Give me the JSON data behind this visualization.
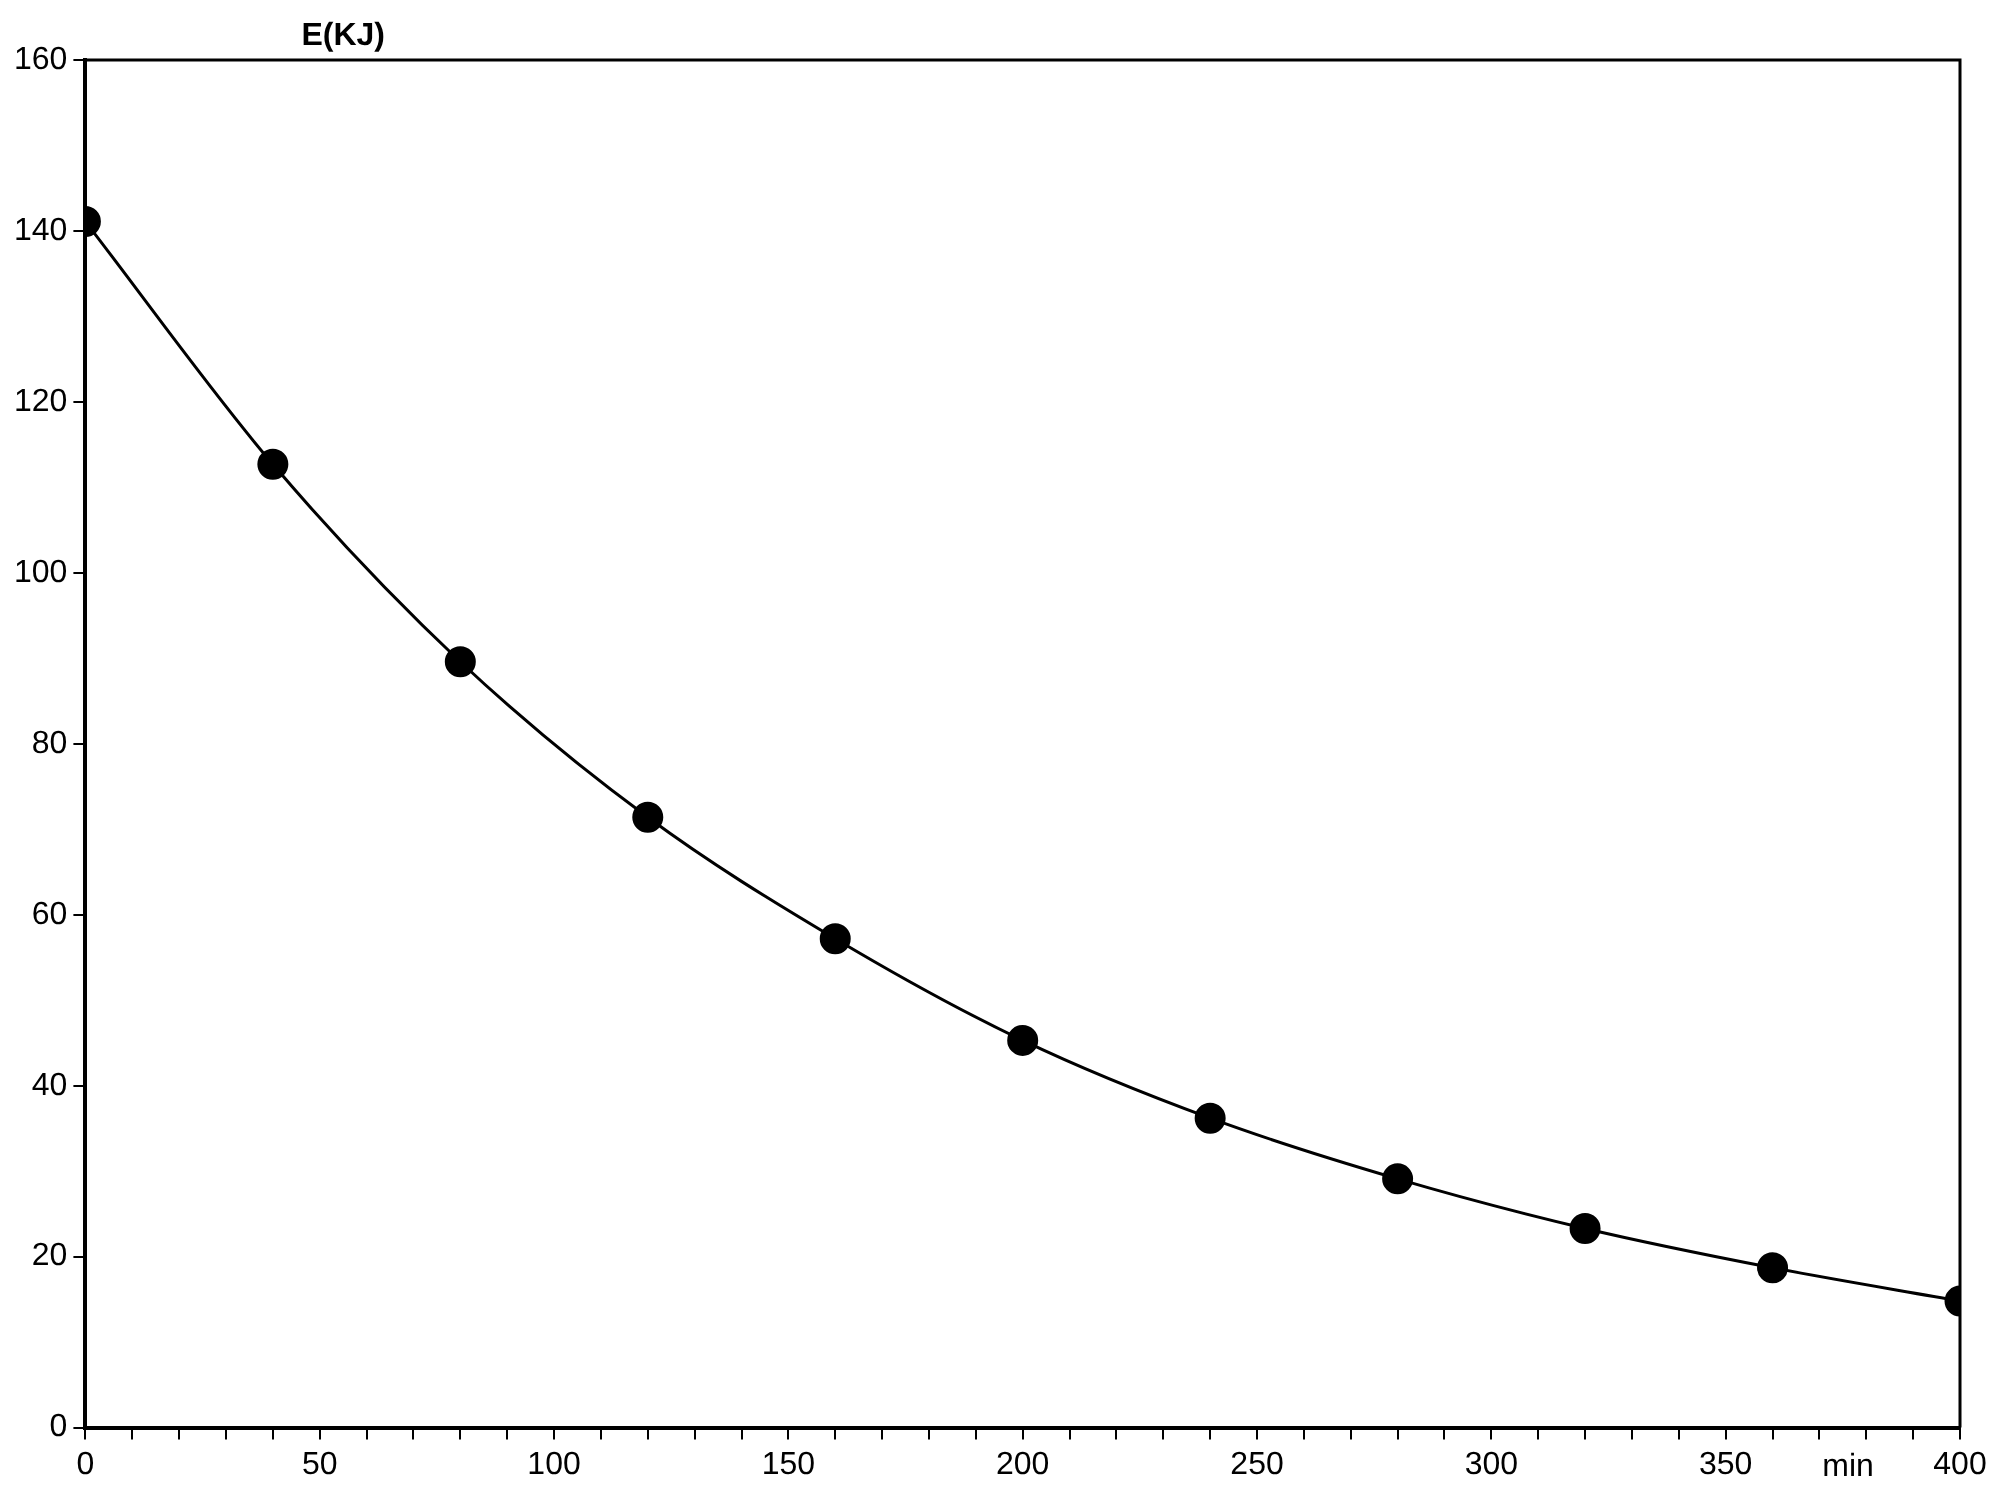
{
  "chart_data": {
    "type": "line",
    "xlabel": "min",
    "ylabel": "E(KJ)",
    "x": [
      0,
      40,
      80,
      120,
      160,
      200,
      240,
      280,
      320,
      360,
      400
    ],
    "series": [
      {
        "color": "#000000",
        "values": [
          141.1,
          112.7,
          89.6,
          71.4,
          57.2,
          45.3,
          36.2,
          29.1,
          23.3,
          18.7,
          14.8
        ]
      }
    ],
    "xlim": [
      0,
      400
    ],
    "xticks": [
      0,
      {
        "value": 10,
        "label": null
      },
      {
        "value": 20,
        "label": null
      },
      {
        "value": 30,
        "label": null
      },
      {
        "value": 40,
        "label": null
      },
      50,
      {
        "value": 60,
        "label": null
      },
      {
        "value": 70,
        "label": null
      },
      {
        "value": 80,
        "label": null
      },
      {
        "value": 90,
        "label": null
      },
      100,
      {
        "value": 110,
        "label": null
      },
      {
        "value": 120,
        "label": null
      },
      {
        "value": 130,
        "label": null
      },
      {
        "value": 140,
        "label": null
      },
      150,
      {
        "value": 160,
        "label": null
      },
      {
        "value": 170,
        "label": null
      },
      {
        "value": 180,
        "label": null
      },
      {
        "value": 190,
        "label": null
      },
      200,
      {
        "value": 210,
        "label": null
      },
      {
        "value": 220,
        "label": null
      },
      {
        "value": 230,
        "label": null
      },
      {
        "value": 240,
        "label": null
      },
      250,
      {
        "value": 260,
        "label": null
      },
      {
        "value": 270,
        "label": null
      },
      {
        "value": 280,
        "label": null
      },
      {
        "value": 290,
        "label": null
      },
      300,
      {
        "value": 310,
        "label": null
      },
      {
        "value": 320,
        "label": null
      },
      {
        "value": 330,
        "label": null
      },
      {
        "value": 340,
        "label": null
      },
      350,
      {
        "value": 360,
        "label": null
      },
      {
        "value": 370,
        "label": null
      },
      {
        "value": 380,
        "label": null
      },
      {
        "value": 390,
        "label": null
      },
      400
    ],
    "ylim": [
      0,
      160
    ],
    "yticks": [
      0,
      20,
      40,
      60,
      80,
      100,
      120,
      140,
      160
    ],
    "grid": false,
    "legend": false,
    "marker": "circle",
    "line_style": "solid"
  }
}
